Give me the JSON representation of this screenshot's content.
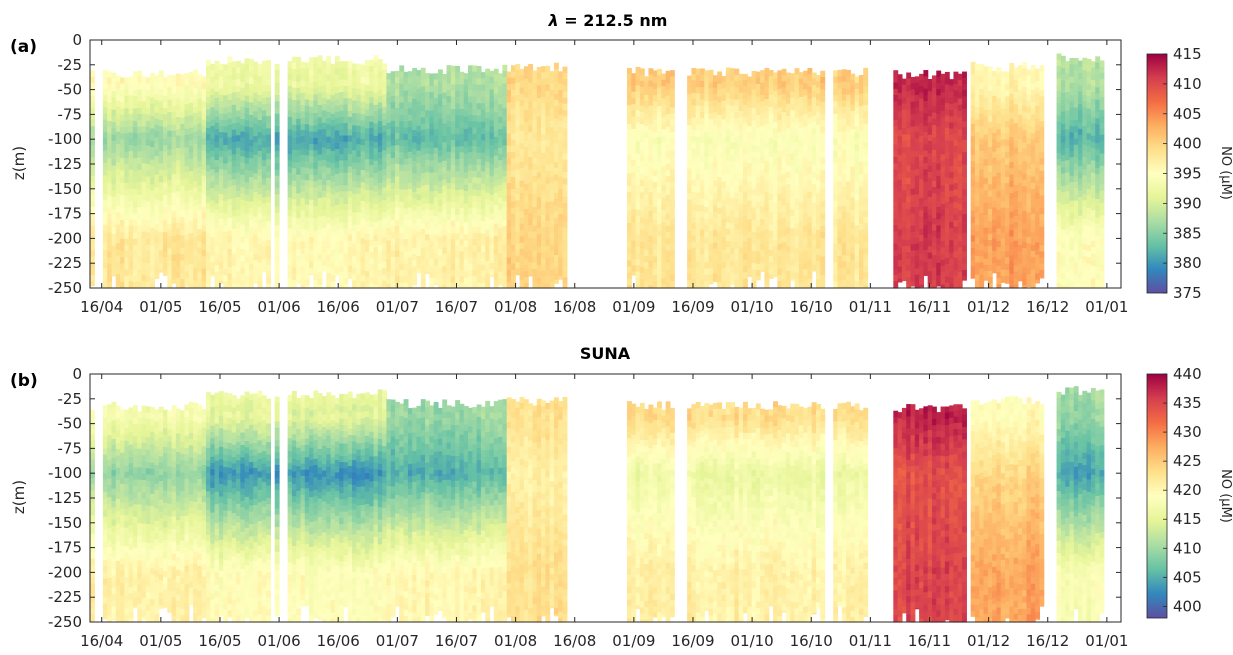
{
  "chart_data": [
    {
      "type": "heatmap",
      "panel_label": "(a)",
      "title": "λ = 212.5 nm",
      "title_prefix": "λ",
      "title_suffix": " = 212.5 nm",
      "ylabel": "z(m)",
      "ylim": [
        -250,
        0
      ],
      "yticks": [
        "0",
        "-25",
        "-50",
        "-75",
        "-100",
        "-125",
        "-150",
        "-175",
        "-200",
        "-225",
        "-250"
      ],
      "xticks": [
        "16/04",
        "01/05",
        "16/05",
        "01/06",
        "16/06",
        "01/07",
        "16/07",
        "01/08",
        "16/08",
        "01/09",
        "16/09",
        "01/10",
        "16/10",
        "01/11",
        "16/11",
        "01/12",
        "16/12",
        "01/01"
      ],
      "colorbar_label": "NO (µM)",
      "clim": [
        375,
        415
      ],
      "colorbar_ticks": [
        "415",
        "410",
        "405",
        "400",
        "395",
        "390",
        "385",
        "380",
        "375"
      ],
      "grid": false,
      "summary": [
        {
          "period": "16/04–16/05",
          "upper_0_40m": 396,
          "mid_75_125m": 386,
          "deep_200_250m": 398
        },
        {
          "period": "16/05–01/07",
          "upper_0_40m": 393,
          "mid_75_125m": 381,
          "deep_200_250m": 396
        },
        {
          "period": "01/07–01/08",
          "upper_0_40m": 388,
          "mid_75_125m": 383,
          "deep_200_250m": 397
        },
        {
          "period": "01/08–16/08",
          "upper_0_40m": 400,
          "mid_75_125m": 398,
          "deep_200_250m": 400
        },
        {
          "period": "01/09–01/11",
          "upper_0_40m": 401,
          "mid_75_125m": 394,
          "deep_200_250m": 398
        },
        {
          "period": "08/11–26/11",
          "upper_0_40m": 413,
          "mid_75_125m": 410,
          "deep_200_250m": 411
        },
        {
          "period": "28/11–16/12",
          "upper_0_40m": 396,
          "mid_75_125m": 401,
          "deep_200_250m": 404
        },
        {
          "period": "20/12–01/01",
          "upper_0_40m": 388,
          "mid_75_125m": 382,
          "deep_200_250m": 395
        }
      ]
    },
    {
      "type": "heatmap",
      "panel_label": "(b)",
      "title": "SUNA",
      "title_prefix": "",
      "title_suffix": "SUNA",
      "ylabel": "z(m)",
      "ylim": [
        -250,
        0
      ],
      "yticks": [
        "0",
        "-25",
        "-50",
        "-75",
        "-100",
        "-125",
        "-150",
        "-175",
        "-200",
        "-225",
        "-250"
      ],
      "xticks": [
        "16/04",
        "01/05",
        "16/05",
        "01/06",
        "16/06",
        "01/07",
        "16/07",
        "01/08",
        "16/08",
        "01/09",
        "16/09",
        "01/10",
        "16/10",
        "01/11",
        "16/11",
        "01/12",
        "16/12",
        "01/01"
      ],
      "colorbar_label": "NO (µM)",
      "clim": [
        398,
        440
      ],
      "colorbar_ticks": [
        "440",
        "435",
        "430",
        "425",
        "420",
        "415",
        "410",
        "405",
        "400"
      ],
      "grid": false,
      "summary": [
        {
          "period": "16/04–16/05",
          "upper_0_40m": 418,
          "mid_75_125m": 409,
          "deep_200_250m": 421
        },
        {
          "period": "16/05–01/07",
          "upper_0_40m": 416,
          "mid_75_125m": 403,
          "deep_200_250m": 419
        },
        {
          "period": "01/07–01/08",
          "upper_0_40m": 410,
          "mid_75_125m": 405,
          "deep_200_250m": 420
        },
        {
          "period": "01/08–16/08",
          "upper_0_40m": 423,
          "mid_75_125m": 421,
          "deep_200_250m": 423
        },
        {
          "period": "01/09–01/11",
          "upper_0_40m": 424,
          "mid_75_125m": 416,
          "deep_200_250m": 421
        },
        {
          "period": "08/11–26/11",
          "upper_0_40m": 438,
          "mid_75_125m": 434,
          "deep_200_250m": 435
        },
        {
          "period": "28/11–16/12",
          "upper_0_40m": 419,
          "mid_75_125m": 424,
          "deep_200_250m": 428
        },
        {
          "period": "20/12–01/01",
          "upper_0_40m": 410,
          "mid_75_125m": 404,
          "deep_200_250m": 418
        }
      ]
    }
  ],
  "colors": {
    "colormap": [
      "#5e4fa2",
      "#3288bd",
      "#66c2a5",
      "#abdda4",
      "#e6f598",
      "#ffffbf",
      "#fee08b",
      "#fdae61",
      "#f46d43",
      "#d53e4f",
      "#9e0142"
    ],
    "axis": "#262626"
  }
}
